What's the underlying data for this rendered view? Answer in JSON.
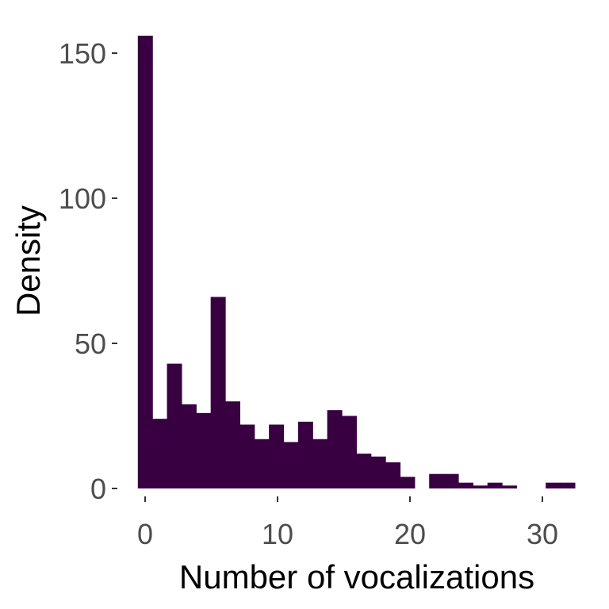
{
  "chart_data": {
    "type": "bar",
    "xlabel": "Number of vocalizations",
    "ylabel": "Density",
    "xlim": [
      -0.55,
      32.55
    ],
    "ylim": [
      0,
      157
    ],
    "x_ticks": [
      0,
      10,
      20,
      30
    ],
    "y_ticks": [
      0,
      50,
      100,
      150
    ],
    "bin_width": 1.1,
    "bar_color": "#380041",
    "grid": false,
    "bins": [
      {
        "x": 0.0,
        "value": 156
      },
      {
        "x": 1.1,
        "value": 24
      },
      {
        "x": 2.2,
        "value": 43
      },
      {
        "x": 3.3,
        "value": 29
      },
      {
        "x": 4.4,
        "value": 26
      },
      {
        "x": 5.5,
        "value": 66
      },
      {
        "x": 6.6,
        "value": 30
      },
      {
        "x": 7.7,
        "value": 22
      },
      {
        "x": 8.8,
        "value": 17
      },
      {
        "x": 9.9,
        "value": 22
      },
      {
        "x": 11.0,
        "value": 16
      },
      {
        "x": 12.1,
        "value": 23
      },
      {
        "x": 13.2,
        "value": 17
      },
      {
        "x": 14.3,
        "value": 27
      },
      {
        "x": 15.4,
        "value": 25
      },
      {
        "x": 16.5,
        "value": 12
      },
      {
        "x": 17.6,
        "value": 11
      },
      {
        "x": 18.7,
        "value": 9
      },
      {
        "x": 19.8,
        "value": 4
      },
      {
        "x": 20.9,
        "value": 0
      },
      {
        "x": 22.0,
        "value": 5
      },
      {
        "x": 23.1,
        "value": 5
      },
      {
        "x": 24.2,
        "value": 2
      },
      {
        "x": 25.3,
        "value": 1
      },
      {
        "x": 26.4,
        "value": 2
      },
      {
        "x": 27.5,
        "value": 1
      },
      {
        "x": 28.6,
        "value": 0
      },
      {
        "x": 29.7,
        "value": 0
      },
      {
        "x": 30.8,
        "value": 2
      },
      {
        "x": 31.9,
        "value": 2
      }
    ]
  }
}
